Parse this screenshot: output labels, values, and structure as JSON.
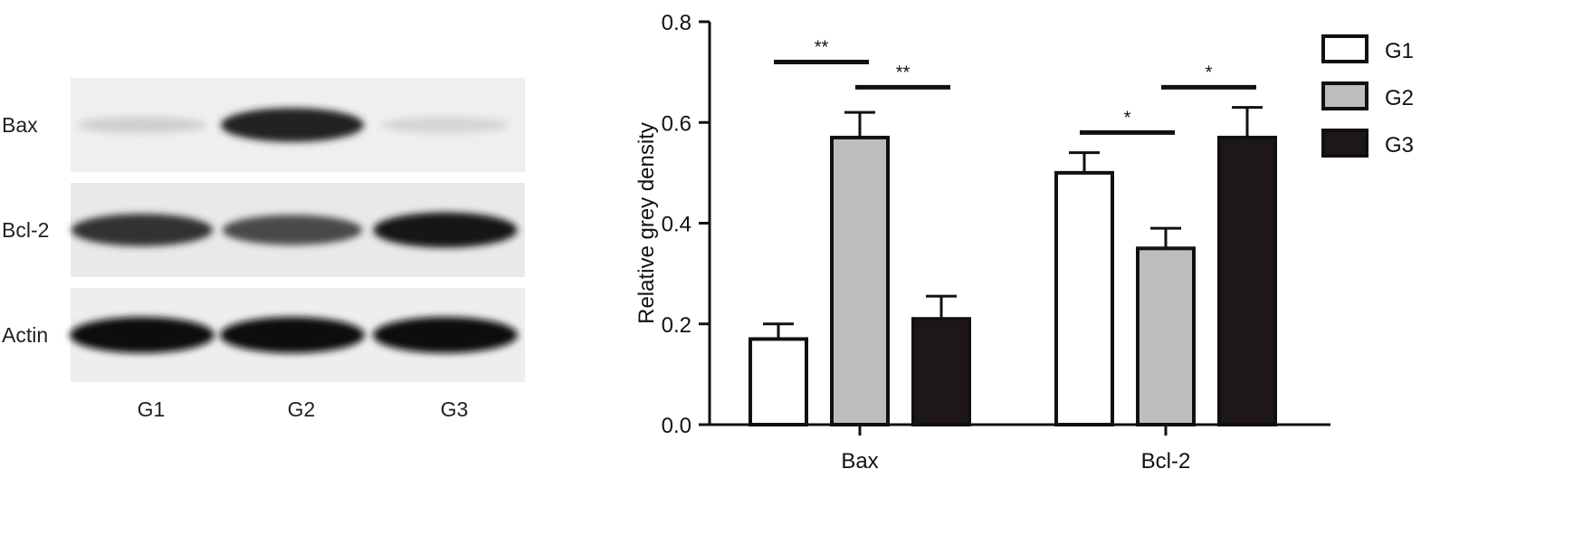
{
  "western_blot": {
    "rows": [
      {
        "label": "Bax",
        "intensities": [
          0.12,
          0.9,
          0.1
        ]
      },
      {
        "label": "Bcl-2",
        "intensities": [
          0.82,
          0.72,
          0.96
        ]
      },
      {
        "label": "Actin",
        "intensities": [
          1.0,
          1.0,
          1.0
        ]
      }
    ],
    "lanes": [
      "G1",
      "G2",
      "G3"
    ]
  },
  "chart_data": {
    "type": "bar",
    "categories": [
      "Bax",
      "Bcl-2"
    ],
    "series": [
      {
        "name": "G1",
        "values": [
          0.17,
          0.5
        ],
        "errors": [
          0.03,
          0.04
        ],
        "color": "#ffffff"
      },
      {
        "name": "G2",
        "values": [
          0.57,
          0.35
        ],
        "errors": [
          0.05,
          0.04
        ],
        "color": "#bdbdbd"
      },
      {
        "name": "G3",
        "values": [
          0.21,
          0.57
        ],
        "errors": [
          0.045,
          0.06
        ],
        "color": "#1e1717"
      }
    ],
    "xlabel": "",
    "ylabel": "Relative grey density",
    "ylim": [
      0,
      0.8
    ],
    "yticks": [
      "0.0",
      "0.2",
      "0.4",
      "0.6",
      "0.8"
    ],
    "grid": false,
    "legend_position": "top-right",
    "significance": [
      {
        "category": "Bax",
        "from_series": "G1",
        "to_series": "G2",
        "y": 0.72,
        "label": "**"
      },
      {
        "category": "Bax",
        "from_series": "G2",
        "to_series": "G3",
        "y": 0.67,
        "label": "**"
      },
      {
        "category": "Bcl-2",
        "from_series": "G1",
        "to_series": "G2",
        "y": 0.58,
        "label": "*"
      },
      {
        "category": "Bcl-2",
        "from_series": "G2",
        "to_series": "G3",
        "y": 0.67,
        "label": "*"
      }
    ]
  }
}
